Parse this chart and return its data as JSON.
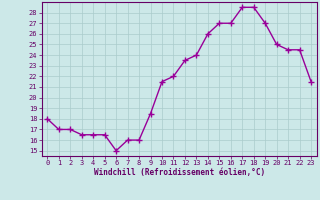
{
  "x": [
    0,
    1,
    2,
    3,
    4,
    5,
    6,
    7,
    8,
    9,
    10,
    11,
    12,
    13,
    14,
    15,
    16,
    17,
    18,
    19,
    20,
    21,
    22,
    23
  ],
  "y": [
    18,
    17,
    17,
    16.5,
    16.5,
    16.5,
    15,
    16,
    16,
    18.5,
    21.5,
    22,
    23.5,
    24,
    26,
    27,
    27,
    28.5,
    28.5,
    27,
    25,
    24.5,
    24.5,
    21.5
  ],
  "title": "",
  "xlabel": "Windchill (Refroidissement éolien,°C)",
  "ylabel": "",
  "yticks": [
    15,
    16,
    17,
    18,
    19,
    20,
    21,
    22,
    23,
    24,
    25,
    26,
    27,
    28
  ],
  "xticks": [
    0,
    1,
    2,
    3,
    4,
    5,
    6,
    7,
    8,
    9,
    10,
    11,
    12,
    13,
    14,
    15,
    16,
    17,
    18,
    19,
    20,
    21,
    22,
    23
  ],
  "line_color": "#990099",
  "marker": "+",
  "bg_color": "#cce8e8",
  "grid_color": "#aacccc",
  "axis_color": "#660066",
  "tick_label_color": "#660066",
  "xlabel_color": "#660066",
  "line_width": 1.0,
  "marker_size": 4
}
